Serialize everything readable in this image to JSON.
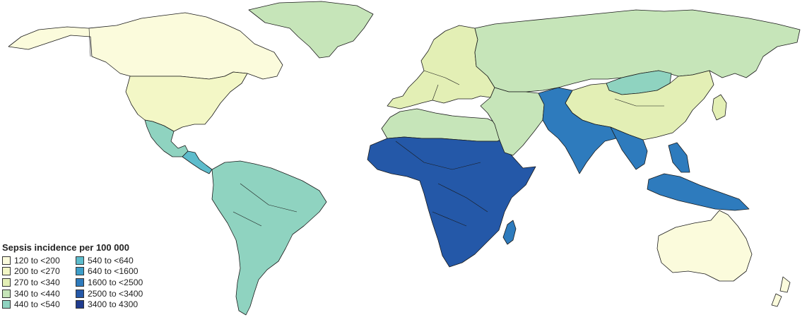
{
  "legend": {
    "title": "Sepsis incidence per 100 000",
    "items": [
      {
        "label": "120 to <200",
        "color": "#fbfbdc"
      },
      {
        "label": "200 to <270",
        "color": "#f3f7c6"
      },
      {
        "label": "270 to <340",
        "color": "#e3efb5"
      },
      {
        "label": "340 to <440",
        "color": "#c6e5b9"
      },
      {
        "label": "440 to <540",
        "color": "#8fd3c0"
      },
      {
        "label": "540 to <640",
        "color": "#5dbccc"
      },
      {
        "label": "640 to <1600",
        "color": "#3d9ec9"
      },
      {
        "label": "1600 to <2500",
        "color": "#2e7bbd"
      },
      {
        "label": "2500 to <3400",
        "color": "#2458a8"
      },
      {
        "label": "3400 to 4300",
        "color": "#1f3b8e"
      }
    ]
  },
  "regions": [
    {
      "name": "canada",
      "category": "120 to <200"
    },
    {
      "name": "united-states",
      "category": "200 to <270"
    },
    {
      "name": "greenland",
      "category": "340 to <440"
    },
    {
      "name": "mexico",
      "category": "440 to <540"
    },
    {
      "name": "central-america",
      "category": "540 to <640"
    },
    {
      "name": "south-america",
      "category": "440 to <540"
    },
    {
      "name": "europe",
      "category": "270 to <340"
    },
    {
      "name": "russia",
      "category": "340 to <440"
    },
    {
      "name": "north-africa",
      "category": "340 to <440"
    },
    {
      "name": "sub-saharan-africa",
      "category": "2500 to <3400"
    },
    {
      "name": "madagascar",
      "category": "1600 to <2500"
    },
    {
      "name": "middle-east",
      "category": "340 to <440"
    },
    {
      "name": "mongolia",
      "category": "440 to <540"
    },
    {
      "name": "china",
      "category": "270 to <340"
    },
    {
      "name": "south-asia",
      "category": "1600 to <2500"
    },
    {
      "name": "southeast-asia",
      "category": "1600 to <2500"
    },
    {
      "name": "australia",
      "category": "120 to <200"
    },
    {
      "name": "new-zealand",
      "category": "120 to <200"
    }
  ]
}
